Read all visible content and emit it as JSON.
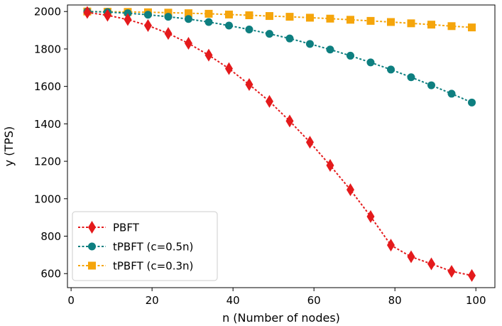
{
  "chart_data": {
    "type": "line",
    "title": "",
    "xlabel": "n (Number of nodes)",
    "ylabel": "y (TPS)",
    "xlim": [
      -0.9,
      104.7
    ],
    "ylim": [
      525,
      2035
    ],
    "xticks": [
      0,
      20,
      40,
      60,
      80,
      100
    ],
    "yticks": [
      600,
      800,
      1000,
      1200,
      1400,
      1600,
      1800,
      2000
    ],
    "grid": false,
    "legend_position": "lower-left",
    "x": [
      4,
      9,
      14,
      19,
      24,
      29,
      34,
      39,
      44,
      49,
      54,
      59,
      64,
      69,
      74,
      79,
      84,
      89,
      94,
      99
    ],
    "series": [
      {
        "name": "PBFT",
        "color": "#e41a1c",
        "marker": "diamond",
        "values": [
          1995,
          1980,
          1957,
          1925,
          1883,
          1830,
          1767,
          1695,
          1610,
          1520,
          1415,
          1302,
          1178,
          1048,
          905,
          752,
          690,
          652,
          612,
          590
        ]
      },
      {
        "name": "tPBFT (c=0.5n)",
        "color": "#0e7f80",
        "marker": "circle",
        "values": [
          2000,
          1997,
          1991,
          1983,
          1972,
          1960,
          1944,
          1925,
          1904,
          1881,
          1856,
          1827,
          1797,
          1764,
          1728,
          1690,
          1649,
          1606,
          1561,
          1514
        ]
      },
      {
        "name": "tPBFT (c=0.3n)",
        "color": "#f5a50b",
        "marker": "square",
        "values": [
          2000,
          1999,
          1998,
          1996,
          1994,
          1991,
          1988,
          1984,
          1980,
          1976,
          1972,
          1967,
          1962,
          1956,
          1950,
          1944,
          1937,
          1930,
          1922,
          1915
        ]
      }
    ]
  }
}
